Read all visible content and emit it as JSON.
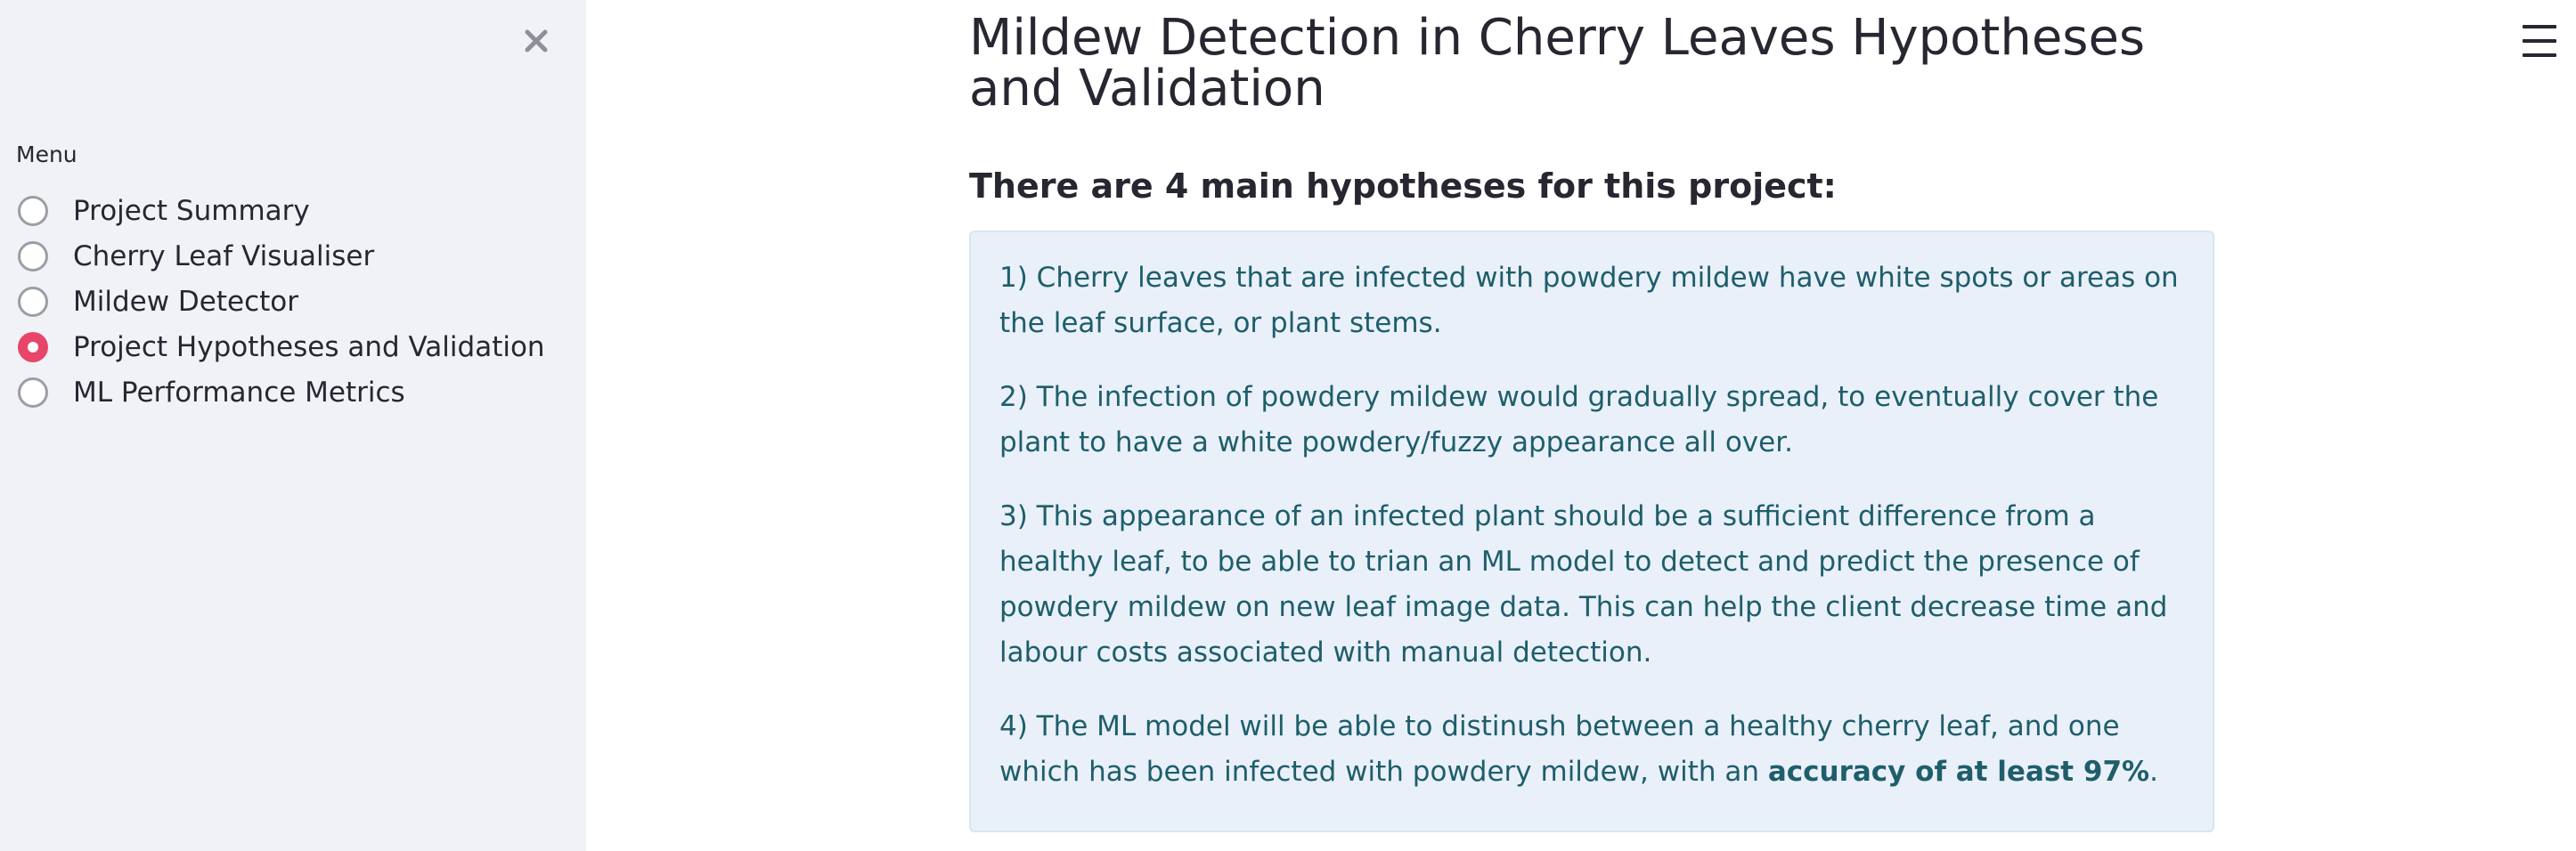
{
  "sidebar": {
    "close_icon": "close-icon",
    "menu_label": "Menu",
    "items": [
      {
        "label": "Project Summary",
        "selected": false
      },
      {
        "label": "Cherry Leaf Visualiser",
        "selected": false
      },
      {
        "label": "Mildew Detector",
        "selected": false
      },
      {
        "label": "Project Hypotheses and Validation",
        "selected": true
      },
      {
        "label": "ML Performance Metrics",
        "selected": false
      }
    ]
  },
  "header": {
    "menu_icon": "hamburger-menu-icon"
  },
  "main": {
    "title": "Mildew Detection in Cherry Leaves Hypotheses and Validation",
    "subheader": "There are 4 main hypotheses for this project:",
    "hypotheses": {
      "h1": "1) Cherry leaves that are infected with powdery mildew have white spots or areas on the leaf surface, or plant stems.",
      "h2": "2) The infection of powdery mildew would gradually spread, to eventually cover the plant to have a white powdery/fuzzy appearance all over.",
      "h3": "3) This appearance of an infected plant should be a sufficient difference from a healthy leaf, to be able to trian an ML model to detect and predict the presence of powdery mildew on new leaf image data. This can help the client decrease time and labour costs associated with manual detection.",
      "h4_prefix": "4) The ML model will be able to distinush between a healthy cherry leaf, and one which has been infected with powdery mildew, with an ",
      "h4_bold": "accuracy of at least 97%",
      "h4_suffix": "."
    }
  },
  "colors": {
    "sidebar_bg": "#f0f2f6",
    "accent": "#e8456b",
    "info_bg": "#e9f0fa",
    "info_text": "#1e5e6a"
  }
}
